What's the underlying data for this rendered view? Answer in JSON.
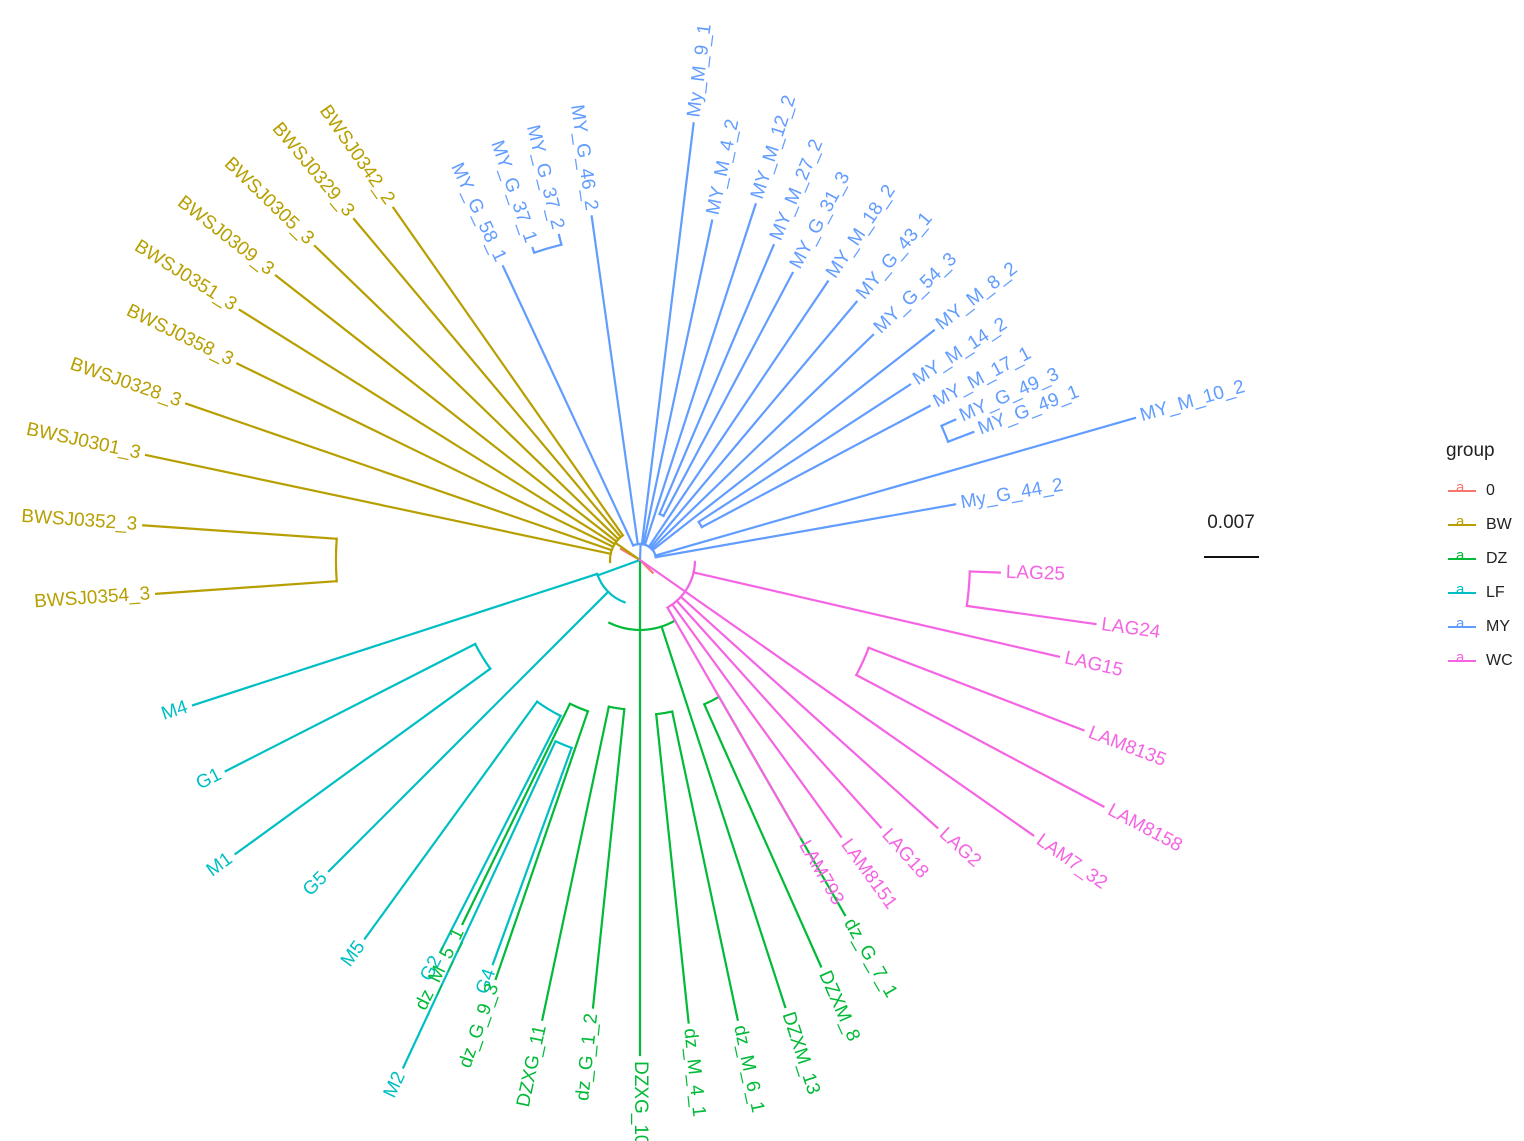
{
  "legend": {
    "title": "group",
    "key_glyph": "a",
    "items": [
      {
        "label": "0",
        "color": "#F8766D"
      },
      {
        "label": "BW",
        "color": "#B79F00"
      },
      {
        "label": "DZ",
        "color": "#00BA38"
      },
      {
        "label": "LF",
        "color": "#00BFC4"
      },
      {
        "label": "MY",
        "color": "#619CFF"
      },
      {
        "label": "WC",
        "color": "#F564E3"
      }
    ]
  },
  "scale_bar": {
    "label": "0.007"
  },
  "tree": {
    "type": "circular-phylogeny",
    "clades": [
      {
        "group": "MY",
        "color": "#619CFF",
        "tips": [
          "My_G_44_2",
          "MY_M_10_2",
          "MY_G_49_1",
          "MY_G_49_3",
          "MY_M_17_1",
          "MY_M_14_2",
          "MY_M_8_2",
          "MY_G_54_3",
          "MY_G_43_1",
          "MY_M_18_2",
          "MY_G_31_3",
          "MY_M_27_2",
          "MY_M_12_2",
          "MY_M_4_2",
          "My_M_9_1",
          "MY_G_46_2",
          "MY_G_37_2",
          "MY_G_37_1",
          "MY_G_58_1"
        ]
      },
      {
        "group": "BW",
        "color": "#B79F00",
        "tips": [
          "BWSJ0342_2",
          "BWSJ0329_3",
          "BWSJ0305_3",
          "BWSJ0309_3",
          "BWSJ0351_3",
          "BWSJ0358_3",
          "BWSJ0328_3",
          "BWSJ0301_3",
          "BWSJ0352_3",
          "BWSJ0354_3"
        ]
      },
      {
        "group": "LF",
        "color": "#00BFC4",
        "tips": [
          "M4",
          "G1",
          "M1",
          "G5",
          "M5",
          "G2",
          "G4",
          "M2"
        ]
      },
      {
        "group": "DZ",
        "color": "#00BA38",
        "tips": [
          "dz_M_5_1",
          "dz_G_9_3",
          "DZXG_11",
          "dz_G_1_2",
          "DZXG_10",
          "dz_M_4_1",
          "dz_M_6_1",
          "DZXM_13",
          "DZXM_8",
          "dz_G_7_1"
        ]
      },
      {
        "group": "WC",
        "color": "#F564E3",
        "tips": [
          "LAM793",
          "LAM8151",
          "LAG18",
          "LAG2",
          "LAM7_32",
          "LAM8158",
          "LAM8135",
          "LAG15",
          "LAG24",
          "LAG25"
        ]
      }
    ]
  }
}
